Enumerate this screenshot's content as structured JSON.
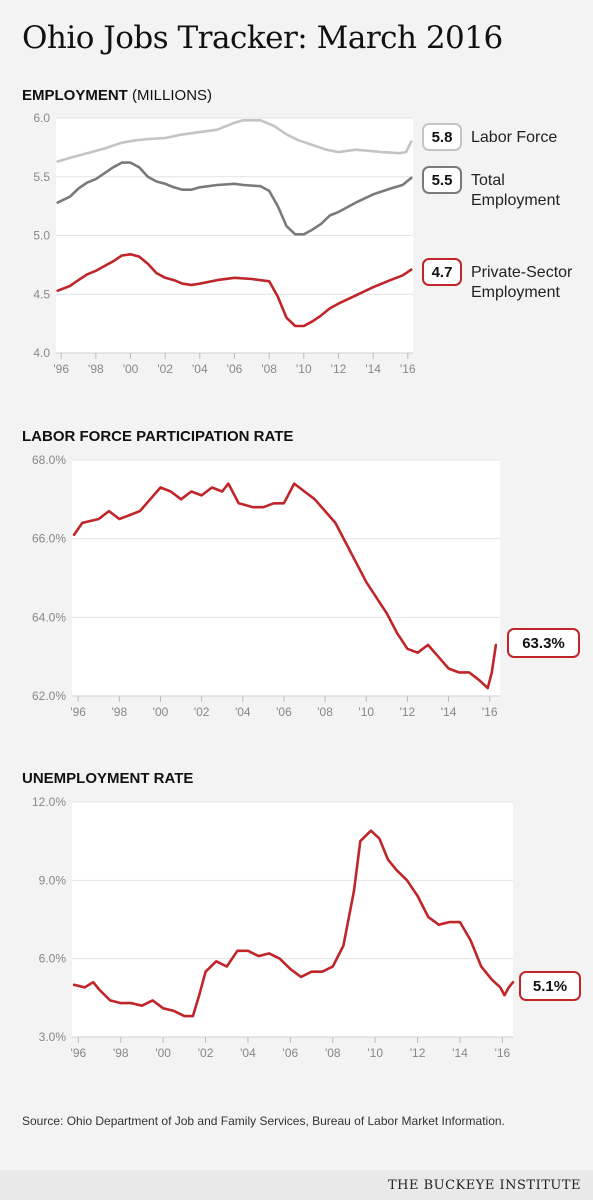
{
  "title": "Ohio Jobs Tracker: March 2016",
  "sections": {
    "employment": {
      "title": "EMPLOYMENT",
      "unit": "(MILLIONS)"
    },
    "lfpr": {
      "title": "LABOR FORCE PARTICIPATION RATE"
    },
    "unemployment": {
      "title": "UNEMPLOYMENT RATE"
    }
  },
  "source": "Source: Ohio Department of Job and Family Services, Bureau of Labor Market Information.",
  "brand": "THE BUCKEYE INSTITUTE",
  "colors": {
    "background": "#f3f3f3",
    "plot": "#ffffff",
    "red": "#c0252a",
    "dark_gray": "#7a7a7a",
    "light_gray": "#c4c4c4",
    "grid": "#e4e4e4"
  },
  "chart_data": [
    {
      "type": "line",
      "title": "EMPLOYMENT (MILLIONS)",
      "ylim": [
        4.0,
        6.0
      ],
      "yticks": [
        "4.0",
        "4.5",
        "5.0",
        "5.5",
        "6.0"
      ],
      "xlim": [
        1995.7,
        2016.3
      ],
      "xticks": [
        "'96",
        "'98",
        "'00",
        "'02",
        "'04",
        "'06",
        "'08",
        "'10",
        "'12",
        "'14",
        "'16"
      ],
      "series": [
        {
          "name": "Labor Force",
          "end_label": "5.8",
          "color": "#c4c4c4",
          "points": [
            [
              1995.8,
              5.63
            ],
            [
              1996.5,
              5.66
            ],
            [
              1997.5,
              5.7
            ],
            [
              1998.5,
              5.74
            ],
            [
              1999.5,
              5.79
            ],
            [
              2000.3,
              5.81
            ],
            [
              2001,
              5.82
            ],
            [
              2002,
              5.83
            ],
            [
              2003,
              5.86
            ],
            [
              2004,
              5.88
            ],
            [
              2005,
              5.9
            ],
            [
              2006,
              5.96
            ],
            [
              2006.5,
              5.98
            ],
            [
              2007.5,
              5.98
            ],
            [
              2008.3,
              5.93
            ],
            [
              2009,
              5.86
            ],
            [
              2009.7,
              5.81
            ],
            [
              2010.5,
              5.77
            ],
            [
              2011.3,
              5.73
            ],
            [
              2012,
              5.71
            ],
            [
              2013,
              5.73
            ],
            [
              2013.8,
              5.72
            ],
            [
              2014.5,
              5.71
            ],
            [
              2015.5,
              5.7
            ],
            [
              2015.9,
              5.71
            ],
            [
              2016.2,
              5.8
            ]
          ]
        },
        {
          "name": "Total Employment",
          "end_label": "5.5",
          "color": "#7a7a7a",
          "points": [
            [
              1995.8,
              5.28
            ],
            [
              1996.5,
              5.33
            ],
            [
              1997,
              5.4
            ],
            [
              1997.5,
              5.45
            ],
            [
              1998,
              5.48
            ],
            [
              1998.5,
              5.53
            ],
            [
              1999,
              5.58
            ],
            [
              1999.5,
              5.62
            ],
            [
              2000,
              5.62
            ],
            [
              2000.5,
              5.58
            ],
            [
              2001,
              5.5
            ],
            [
              2001.5,
              5.46
            ],
            [
              2002,
              5.44
            ],
            [
              2002.5,
              5.41
            ],
            [
              2003,
              5.39
            ],
            [
              2003.5,
              5.39
            ],
            [
              2004,
              5.41
            ],
            [
              2005,
              5.43
            ],
            [
              2006,
              5.44
            ],
            [
              2006.5,
              5.43
            ],
            [
              2007.5,
              5.42
            ],
            [
              2008,
              5.38
            ],
            [
              2008.5,
              5.25
            ],
            [
              2009,
              5.08
            ],
            [
              2009.5,
              5.01
            ],
            [
              2010,
              5.01
            ],
            [
              2010.5,
              5.05
            ],
            [
              2011,
              5.1
            ],
            [
              2011.5,
              5.17
            ],
            [
              2012,
              5.2
            ],
            [
              2013,
              5.28
            ],
            [
              2014,
              5.35
            ],
            [
              2015,
              5.4
            ],
            [
              2015.7,
              5.43
            ],
            [
              2016.2,
              5.49
            ]
          ]
        },
        {
          "name": "Private-Sector Employment",
          "end_label": "4.7",
          "color": "#c0252a",
          "points": [
            [
              1995.8,
              4.53
            ],
            [
              1996.5,
              4.57
            ],
            [
              1997,
              4.62
            ],
            [
              1997.5,
              4.67
            ],
            [
              1998,
              4.7
            ],
            [
              1998.5,
              4.74
            ],
            [
              1999,
              4.78
            ],
            [
              1999.5,
              4.83
            ],
            [
              2000,
              4.84
            ],
            [
              2000.5,
              4.82
            ],
            [
              2001,
              4.76
            ],
            [
              2001.5,
              4.68
            ],
            [
              2002,
              4.64
            ],
            [
              2002.5,
              4.62
            ],
            [
              2003,
              4.59
            ],
            [
              2003.5,
              4.58
            ],
            [
              2004,
              4.59
            ],
            [
              2005,
              4.62
            ],
            [
              2006,
              4.64
            ],
            [
              2007,
              4.63
            ],
            [
              2008,
              4.61
            ],
            [
              2008.5,
              4.48
            ],
            [
              2009,
              4.3
            ],
            [
              2009.5,
              4.23
            ],
            [
              2010,
              4.23
            ],
            [
              2010.5,
              4.27
            ],
            [
              2011,
              4.32
            ],
            [
              2011.5,
              4.38
            ],
            [
              2012,
              4.42
            ],
            [
              2013,
              4.49
            ],
            [
              2014,
              4.56
            ],
            [
              2015,
              4.62
            ],
            [
              2015.7,
              4.66
            ],
            [
              2016.2,
              4.71
            ]
          ]
        }
      ]
    },
    {
      "type": "line",
      "title": "LABOR FORCE PARTICIPATION RATE",
      "ylim": [
        62.0,
        68.0
      ],
      "yticks": [
        "62.0%",
        "64.0%",
        "66.0%",
        "68.0%"
      ],
      "xlim": [
        1995.7,
        2016.5
      ],
      "xticks": [
        "'96",
        "'98",
        "'00",
        "'02",
        "'04",
        "'06",
        "'08",
        "'10",
        "'12",
        "'14",
        "'16"
      ],
      "series": [
        {
          "name": "",
          "end_label": "63.3%",
          "color": "#c0252a",
          "points": [
            [
              1995.8,
              66.1
            ],
            [
              1996.2,
              66.4
            ],
            [
              1997,
              66.5
            ],
            [
              1997.5,
              66.7
            ],
            [
              1998,
              66.5
            ],
            [
              1998.5,
              66.6
            ],
            [
              1999,
              66.7
            ],
            [
              1999.5,
              67.0
            ],
            [
              2000,
              67.3
            ],
            [
              2000.5,
              67.2
            ],
            [
              2001,
              67.0
            ],
            [
              2001.5,
              67.2
            ],
            [
              2002,
              67.1
            ],
            [
              2002.5,
              67.3
            ],
            [
              2003,
              67.2
            ],
            [
              2003.3,
              67.4
            ],
            [
              2003.8,
              66.9
            ],
            [
              2004.5,
              66.8
            ],
            [
              2005,
              66.8
            ],
            [
              2005.5,
              66.9
            ],
            [
              2006,
              66.9
            ],
            [
              2006.5,
              67.4
            ],
            [
              2007,
              67.2
            ],
            [
              2007.5,
              67.0
            ],
            [
              2008,
              66.7
            ],
            [
              2008.5,
              66.4
            ],
            [
              2009,
              65.9
            ],
            [
              2009.5,
              65.4
            ],
            [
              2010,
              64.9
            ],
            [
              2010.5,
              64.5
            ],
            [
              2011,
              64.1
            ],
            [
              2011.5,
              63.6
            ],
            [
              2012,
              63.2
            ],
            [
              2012.5,
              63.1
            ],
            [
              2013,
              63.3
            ],
            [
              2013.5,
              63.0
            ],
            [
              2014,
              62.7
            ],
            [
              2014.5,
              62.6
            ],
            [
              2015,
              62.6
            ],
            [
              2015.5,
              62.4
            ],
            [
              2015.9,
              62.2
            ],
            [
              2016.1,
              62.6
            ],
            [
              2016.3,
              63.3
            ]
          ]
        }
      ]
    },
    {
      "type": "line",
      "title": "UNEMPLOYMENT RATE",
      "ylim": [
        3.0,
        12.0
      ],
      "yticks": [
        "3.0%",
        "6.0%",
        "9.0%",
        "12.0%"
      ],
      "xlim": [
        1995.7,
        2016.5
      ],
      "xticks": [
        "'96",
        "'98",
        "'00",
        "'02",
        "'04",
        "'06",
        "'08",
        "'10",
        "'12",
        "'14",
        "'16"
      ],
      "series": [
        {
          "name": "",
          "end_label": "5.1%",
          "color": "#c0252a",
          "points": [
            [
              1995.8,
              5.0
            ],
            [
              1996.3,
              4.9
            ],
            [
              1996.7,
              5.1
            ],
            [
              1997,
              4.8
            ],
            [
              1997.5,
              4.4
            ],
            [
              1998,
              4.3
            ],
            [
              1998.5,
              4.3
            ],
            [
              1999,
              4.2
            ],
            [
              1999.5,
              4.4
            ],
            [
              2000,
              4.1
            ],
            [
              2000.5,
              4.0
            ],
            [
              2001,
              3.8
            ],
            [
              2001.4,
              3.8
            ],
            [
              2001.7,
              4.6
            ],
            [
              2002,
              5.5
            ],
            [
              2002.5,
              5.9
            ],
            [
              2003,
              5.7
            ],
            [
              2003.5,
              6.3
            ],
            [
              2004,
              6.3
            ],
            [
              2004.5,
              6.1
            ],
            [
              2005,
              6.2
            ],
            [
              2005.5,
              6.0
            ],
            [
              2006,
              5.6
            ],
            [
              2006.5,
              5.3
            ],
            [
              2007,
              5.5
            ],
            [
              2007.5,
              5.5
            ],
            [
              2008,
              5.7
            ],
            [
              2008.5,
              6.5
            ],
            [
              2009,
              8.6
            ],
            [
              2009.3,
              10.5
            ],
            [
              2009.8,
              10.9
            ],
            [
              2010.2,
              10.6
            ],
            [
              2010.6,
              9.8
            ],
            [
              2011,
              9.4
            ],
            [
              2011.5,
              9.0
            ],
            [
              2012,
              8.4
            ],
            [
              2012.5,
              7.6
            ],
            [
              2013,
              7.3
            ],
            [
              2013.5,
              7.4
            ],
            [
              2014,
              7.4
            ],
            [
              2014.5,
              6.7
            ],
            [
              2015,
              5.7
            ],
            [
              2015.5,
              5.2
            ],
            [
              2015.9,
              4.9
            ],
            [
              2016.1,
              4.6
            ],
            [
              2016.3,
              4.9
            ],
            [
              2016.5,
              5.1
            ]
          ]
        }
      ]
    }
  ]
}
